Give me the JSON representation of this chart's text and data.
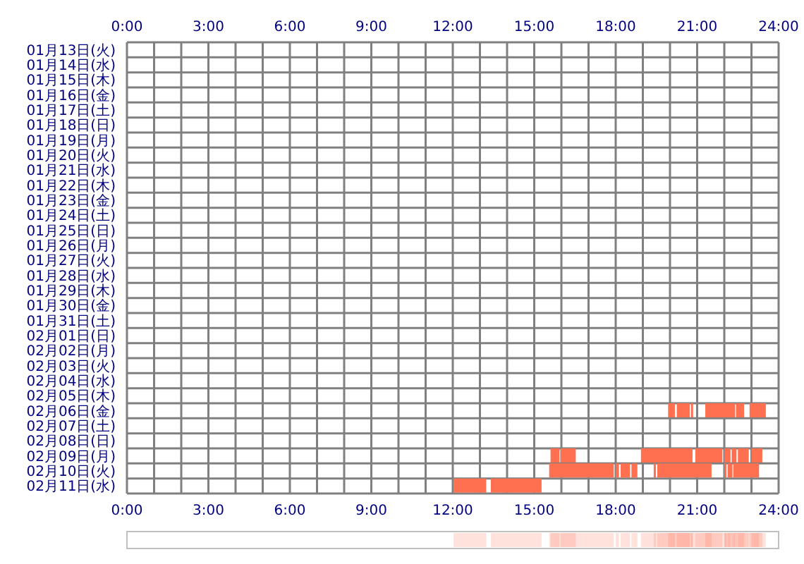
{
  "chart_data": {
    "type": "bar",
    "orientation": "horizontal",
    "grid": true,
    "categories": [
      "01月13日(火)",
      "01月14日(水)",
      "01月15日(木)",
      "01月16日(金)",
      "01月17日(土)",
      "01月18日(日)",
      "01月19日(月)",
      "01月20日(火)",
      "01月21日(水)",
      "01月22日(木)",
      "01月23日(金)",
      "01月24日(土)",
      "01月25日(日)",
      "01月26日(月)",
      "01月27日(火)",
      "01月28日(水)",
      "01月29日(木)",
      "01月30日(金)",
      "01月31日(土)",
      "02月01日(日)",
      "02月02日(月)",
      "02月03日(火)",
      "02月04日(水)",
      "02月05日(木)",
      "02月06日(金)",
      "02月07日(土)",
      "02月08日(日)",
      "02月09日(月)",
      "02月10日(火)",
      "02月11日(水)"
    ],
    "xlim": [
      0,
      24
    ],
    "xticks": [
      {
        "value": 0,
        "label": "0:00"
      },
      {
        "value": 1,
        "label": null
      },
      {
        "value": 2,
        "label": null
      },
      {
        "value": 3,
        "label": "3:00"
      },
      {
        "value": 4,
        "label": null
      },
      {
        "value": 5,
        "label": null
      },
      {
        "value": 6,
        "label": "6:00"
      },
      {
        "value": 7,
        "label": null
      },
      {
        "value": 8,
        "label": null
      },
      {
        "value": 9,
        "label": "9:00"
      },
      {
        "value": 10,
        "label": null
      },
      {
        "value": 11,
        "label": null
      },
      {
        "value": 12,
        "label": "12:00"
      },
      {
        "value": 13,
        "label": null
      },
      {
        "value": 14,
        "label": null
      },
      {
        "value": 15,
        "label": "15:00"
      },
      {
        "value": 16,
        "label": null
      },
      {
        "value": 17,
        "label": null
      },
      {
        "value": 18,
        "label": "18:00"
      },
      {
        "value": 19,
        "label": null
      },
      {
        "value": 20,
        "label": null
      },
      {
        "value": 21,
        "label": "21:00"
      },
      {
        "value": 22,
        "label": null
      },
      {
        "value": 23,
        "label": null
      },
      {
        "value": 24,
        "label": "24:00"
      }
    ],
    "x2lim": [
      0,
      24
    ],
    "x2ticks": [
      {
        "value": 0,
        "label": "0:00"
      },
      {
        "value": 1,
        "label": null
      },
      {
        "value": 2,
        "label": null
      },
      {
        "value": 3,
        "label": "3:00"
      },
      {
        "value": 4,
        "label": null
      },
      {
        "value": 5,
        "label": null
      },
      {
        "value": 6,
        "label": "6:00"
      },
      {
        "value": 7,
        "label": null
      },
      {
        "value": 8,
        "label": null
      },
      {
        "value": 9,
        "label": "9:00"
      },
      {
        "value": 10,
        "label": null
      },
      {
        "value": 11,
        "label": null
      },
      {
        "value": 12,
        "label": "12:00"
      },
      {
        "value": 13,
        "label": null
      },
      {
        "value": 14,
        "label": null
      },
      {
        "value": 15,
        "label": "15:00"
      },
      {
        "value": 16,
        "label": null
      },
      {
        "value": 17,
        "label": null
      },
      {
        "value": 18,
        "label": "18:00"
      },
      {
        "value": 19,
        "label": null
      },
      {
        "value": 20,
        "label": null
      },
      {
        "value": 21,
        "label": "21:00"
      },
      {
        "value": 22,
        "label": null
      },
      {
        "value": 23,
        "label": null
      },
      {
        "value": 24,
        "label": "24:00"
      }
    ],
    "series": [
      {
        "color": "#ff7050",
        "base": [
          null,
          null,
          null,
          null,
          null,
          null,
          null,
          null,
          null,
          null,
          null,
          null,
          null,
          null,
          null,
          null,
          null,
          null,
          null,
          null,
          null,
          null,
          null,
          null,
          19.93,
          null,
          null,
          15.6,
          15.55,
          12.03
        ],
        "values": [
          null,
          null,
          null,
          null,
          null,
          null,
          null,
          null,
          null,
          null,
          null,
          null,
          null,
          null,
          null,
          null,
          null,
          null,
          null,
          null,
          null,
          null,
          null,
          null,
          0.25,
          null,
          null,
          0.33,
          2.38,
          1.2
        ]
      },
      {
        "color": "#ff7050",
        "base": [
          null,
          null,
          null,
          null,
          null,
          null,
          null,
          null,
          null,
          null,
          null,
          null,
          null,
          null,
          null,
          null,
          null,
          null,
          null,
          null,
          null,
          null,
          null,
          null,
          20.25,
          null,
          null,
          15.97,
          18.0,
          13.4
        ],
        "values": [
          null,
          null,
          null,
          null,
          null,
          null,
          null,
          null,
          null,
          null,
          null,
          null,
          null,
          null,
          null,
          null,
          null,
          null,
          null,
          null,
          null,
          null,
          null,
          null,
          0.48,
          null,
          null,
          0.56,
          0.12,
          1.87
        ]
      },
      {
        "color": "#ff7050",
        "base": [
          null,
          null,
          null,
          null,
          null,
          null,
          null,
          null,
          null,
          null,
          null,
          null,
          null,
          null,
          null,
          null,
          null,
          null,
          null,
          null,
          null,
          null,
          null,
          null,
          20.77,
          null,
          null,
          18.93,
          18.18,
          null
        ],
        "values": [
          null,
          null,
          null,
          null,
          null,
          null,
          null,
          null,
          null,
          null,
          null,
          null,
          null,
          null,
          null,
          null,
          null,
          null,
          null,
          null,
          null,
          null,
          null,
          null,
          0.08,
          null,
          null,
          1.9,
          0.35,
          null
        ]
      },
      {
        "color": "#ff7050",
        "base": [
          null,
          null,
          null,
          null,
          null,
          null,
          null,
          null,
          null,
          null,
          null,
          null,
          null,
          null,
          null,
          null,
          null,
          null,
          null,
          null,
          null,
          null,
          null,
          null,
          21.3,
          null,
          null,
          20.93,
          18.58,
          null
        ],
        "values": [
          null,
          null,
          null,
          null,
          null,
          null,
          null,
          null,
          null,
          null,
          null,
          null,
          null,
          null,
          null,
          null,
          null,
          null,
          null,
          null,
          null,
          null,
          null,
          null,
          1.1,
          null,
          null,
          1.0,
          0.22,
          null
        ]
      },
      {
        "color": "#ff7050",
        "base": [
          null,
          null,
          null,
          null,
          null,
          null,
          null,
          null,
          null,
          null,
          null,
          null,
          null,
          null,
          null,
          null,
          null,
          null,
          null,
          null,
          null,
          null,
          null,
          null,
          22.43,
          null,
          null,
          22.0,
          19.4,
          null
        ],
        "values": [
          null,
          null,
          null,
          null,
          null,
          null,
          null,
          null,
          null,
          null,
          null,
          null,
          null,
          null,
          null,
          null,
          null,
          null,
          null,
          null,
          null,
          null,
          null,
          null,
          0.3,
          null,
          null,
          0.23,
          0.08,
          null
        ]
      },
      {
        "color": "#ff7050",
        "base": [
          null,
          null,
          null,
          null,
          null,
          null,
          null,
          null,
          null,
          null,
          null,
          null,
          null,
          null,
          null,
          null,
          null,
          null,
          null,
          null,
          null,
          null,
          null,
          null,
          22.93,
          null,
          null,
          22.27,
          19.53,
          null
        ],
        "values": [
          null,
          null,
          null,
          null,
          null,
          null,
          null,
          null,
          null,
          null,
          null,
          null,
          null,
          null,
          null,
          null,
          null,
          null,
          null,
          null,
          null,
          null,
          null,
          null,
          0.6,
          null,
          null,
          0.18,
          2.0,
          null
        ]
      },
      {
        "color": "#ff7050",
        "base": [
          null,
          null,
          null,
          null,
          null,
          null,
          null,
          null,
          null,
          null,
          null,
          null,
          null,
          null,
          null,
          null,
          null,
          null,
          null,
          null,
          null,
          null,
          null,
          null,
          null,
          null,
          null,
          22.5,
          22.0,
          null
        ],
        "values": [
          null,
          null,
          null,
          null,
          null,
          null,
          null,
          null,
          null,
          null,
          null,
          null,
          null,
          null,
          null,
          null,
          null,
          null,
          null,
          null,
          null,
          null,
          null,
          null,
          null,
          null,
          null,
          0.4,
          0.08,
          null
        ]
      },
      {
        "color": "#ff7050",
        "base": [
          null,
          null,
          null,
          null,
          null,
          null,
          null,
          null,
          null,
          null,
          null,
          null,
          null,
          null,
          null,
          null,
          null,
          null,
          null,
          null,
          null,
          null,
          null,
          null,
          null,
          null,
          null,
          23.0,
          22.12,
          null
        ],
        "values": [
          null,
          null,
          null,
          null,
          null,
          null,
          null,
          null,
          null,
          null,
          null,
          null,
          null,
          null,
          null,
          null,
          null,
          null,
          null,
          null,
          null,
          null,
          null,
          null,
          null,
          null,
          null,
          0.4,
          0.18,
          null
        ]
      },
      {
        "color": "#ff7050",
        "base": [
          null,
          null,
          null,
          null,
          null,
          null,
          null,
          null,
          null,
          null,
          null,
          null,
          null,
          null,
          null,
          null,
          null,
          null,
          null,
          null,
          null,
          null,
          null,
          null,
          null,
          null,
          null,
          null,
          22.33,
          null
        ],
        "values": [
          null,
          null,
          null,
          null,
          null,
          null,
          null,
          null,
          null,
          null,
          null,
          null,
          null,
          null,
          null,
          null,
          null,
          null,
          null,
          null,
          null,
          null,
          null,
          null,
          null,
          null,
          null,
          null,
          0.95,
          null
        ]
      }
    ]
  }
}
